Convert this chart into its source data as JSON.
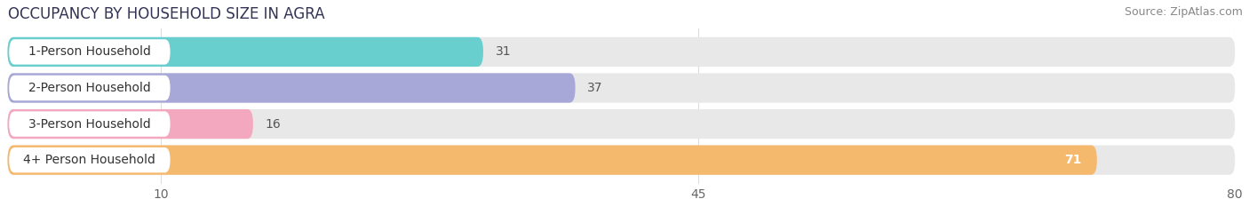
{
  "title": "OCCUPANCY BY HOUSEHOLD SIZE IN AGRA",
  "source": "Source: ZipAtlas.com",
  "categories": [
    "1-Person Household",
    "2-Person Household",
    "3-Person Household",
    "4+ Person Household"
  ],
  "values": [
    31,
    37,
    16,
    71
  ],
  "bar_colors": [
    "#68cece",
    "#a8a8d8",
    "#f4a8c0",
    "#f5b96e"
  ],
  "xlim": [
    0,
    80
  ],
  "xticks": [
    10,
    45,
    80
  ],
  "background_color": "#ffffff",
  "bar_bg_color": "#e8e8e8",
  "title_fontsize": 12,
  "source_fontsize": 9,
  "label_fontsize": 10,
  "value_fontsize": 10,
  "tick_fontsize": 10,
  "value_inside": [
    false,
    false,
    false,
    true
  ]
}
